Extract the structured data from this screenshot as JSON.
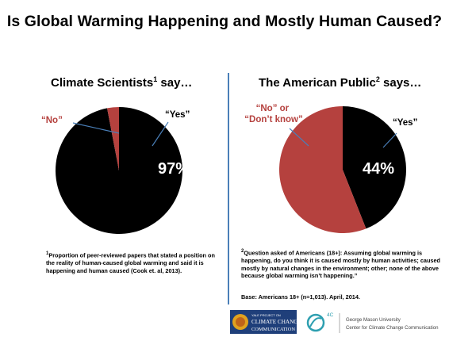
{
  "title": "Is Global Warming Happening and Mostly Human Caused?",
  "chart_data": [
    {
      "type": "pie",
      "title": "Climate Scientists",
      "title_marker": "1",
      "title_suffix": " say…",
      "slices": [
        {
          "label": "“Yes”",
          "value": 97,
          "color": "#000000",
          "value_label": "97%"
        },
        {
          "label": "“No”",
          "value": 3,
          "color": "#b5413e"
        }
      ]
    },
    {
      "type": "pie",
      "title": "The American Public",
      "title_marker": "2",
      "title_suffix": " says…",
      "slices": [
        {
          "label": "“Yes”",
          "value": 44,
          "color": "#000000",
          "value_label": "44%"
        },
        {
          "label": "“No” or “Don’t know”",
          "label_lines": [
            "“No” or",
            "“Don’t know”"
          ],
          "value": 56,
          "color": "#b5413e"
        }
      ]
    }
  ],
  "footnotes": {
    "note1_marker": "1",
    "note1": "Proportion of peer-reviewed papers that stated a position on the reality of human-caused global warming and said it is happening and human caused (Cook et. al, 2013).",
    "note2_marker": "2",
    "note2": "Question asked of Americans (18+): Assuming global warming is happening, do you think it is caused mostly by human activities; caused mostly by natural changes in the environment; other; none of the above because global warming isn’t happening.”",
    "base": "Base: Americans 18+ (n=1,013). April, 2014."
  },
  "logos": {
    "yale_line1": "YALE PROJECT ON",
    "yale_line2": "CLIMATE CHANGE",
    "yale_line3": "COMMUNICATION",
    "fourc": "4C",
    "gmu_line1": "George Mason University",
    "gmu_line2": "Center for Climate Change Communication"
  }
}
